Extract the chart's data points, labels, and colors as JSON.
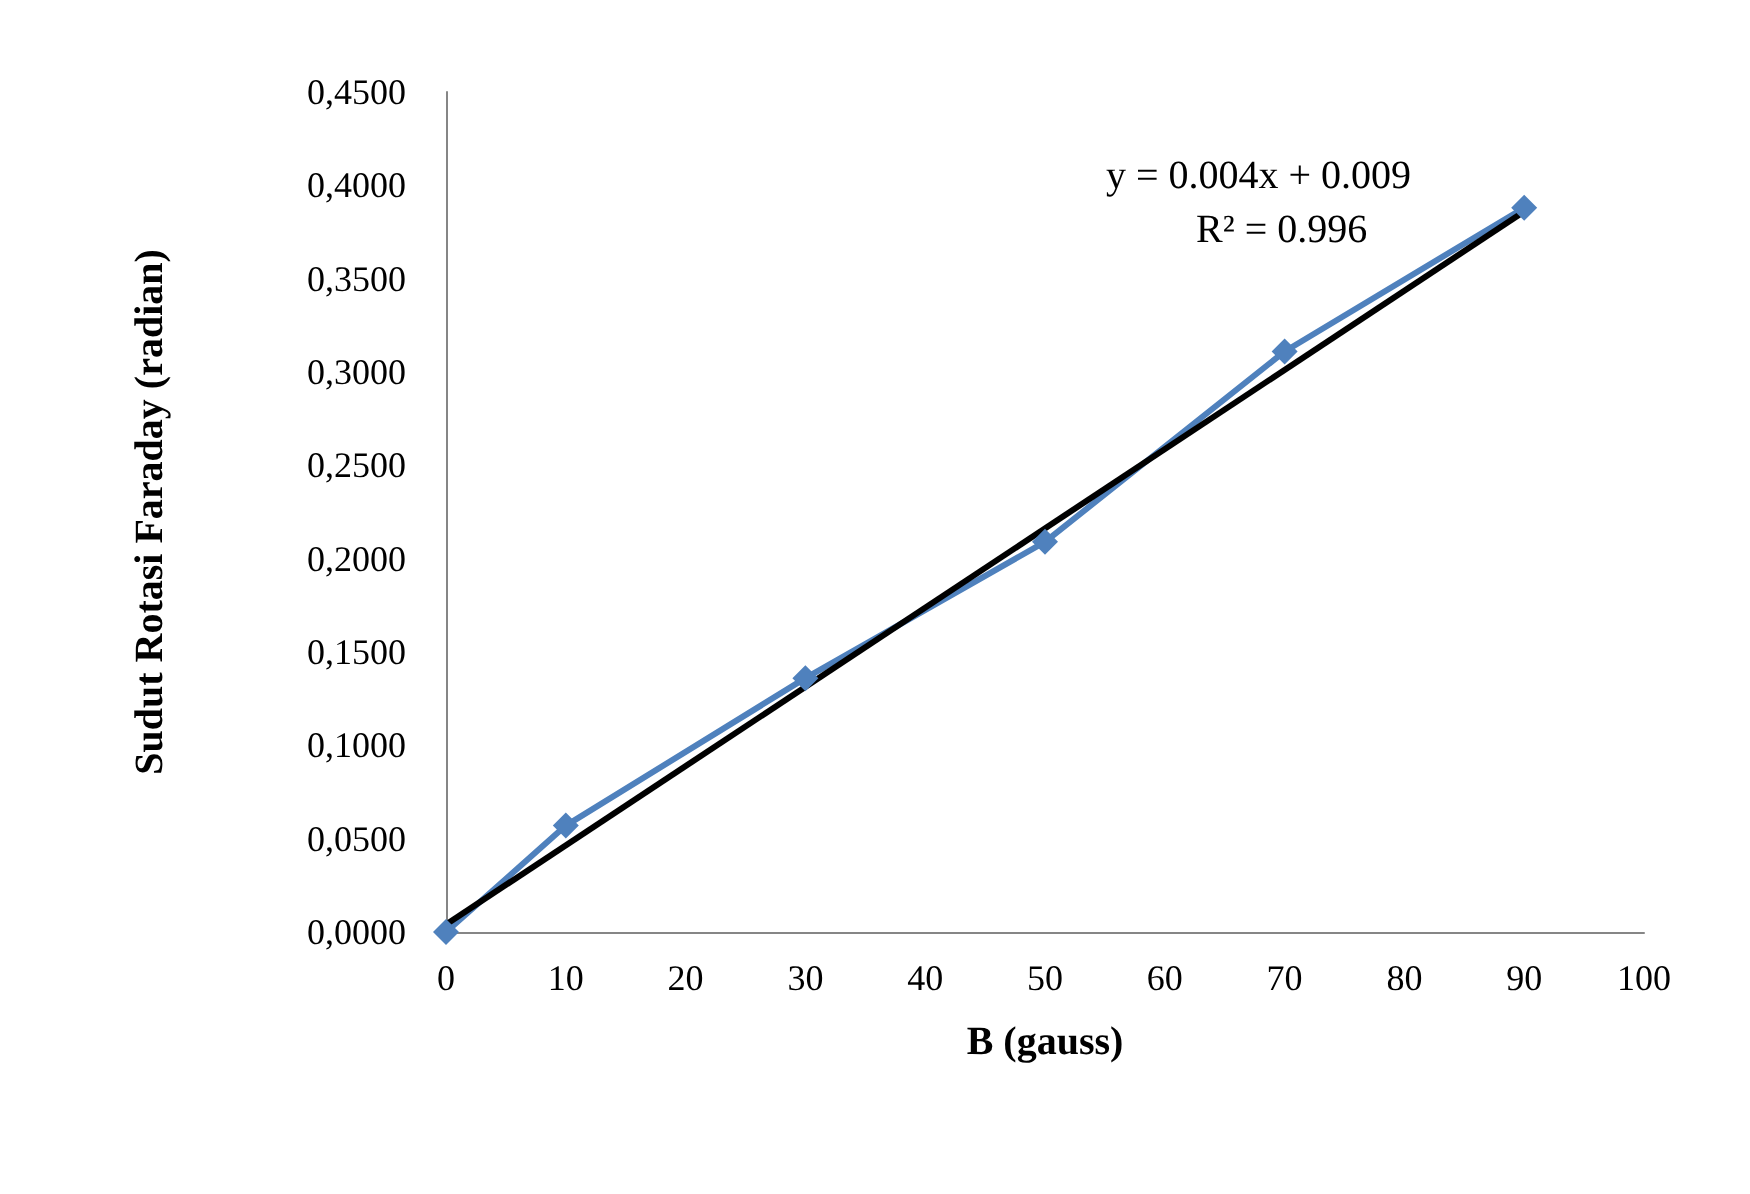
{
  "chart_data": {
    "type": "line",
    "xlabel": "B (gauss)",
    "ylabel": "Sudut Rotasi Faraday (radian)",
    "x": [
      0,
      10,
      30,
      50,
      70,
      90
    ],
    "series": [
      {
        "color": "#4f81bd",
        "values": [
          0,
          0.057,
          0.136,
          0.209,
          0.311,
          0.388
        ],
        "marker": "diamond"
      },
      {
        "type": "line",
        "color": "#000000",
        "x": [
          0,
          90
        ],
        "values": [
          0.004,
          0.386
        ],
        "marker": "none"
      }
    ],
    "xlim": [
      0,
      100
    ],
    "xticks": [
      0,
      10,
      20,
      30,
      40,
      50,
      60,
      70,
      80,
      90,
      100
    ],
    "ylim": [
      0,
      0.45
    ],
    "yticks": [
      {
        "value": 0,
        "label": "0,0000"
      },
      {
        "value": 0.05,
        "label": "0,0500"
      },
      {
        "value": 0.1,
        "label": "0,1000"
      },
      {
        "value": 0.15,
        "label": "0,1500"
      },
      {
        "value": 0.2,
        "label": "0,2000"
      },
      {
        "value": 0.25,
        "label": "0,2500"
      },
      {
        "value": 0.3,
        "label": "0,3000"
      },
      {
        "value": 0.35,
        "label": "0,3500"
      },
      {
        "value": 0.4,
        "label": "0,4000"
      },
      {
        "value": 0.45,
        "label": "0,4500"
      }
    ],
    "annotations": [
      "y = 0.004x + 0.009",
      "R² = 0.996"
    ],
    "grid": false
  }
}
